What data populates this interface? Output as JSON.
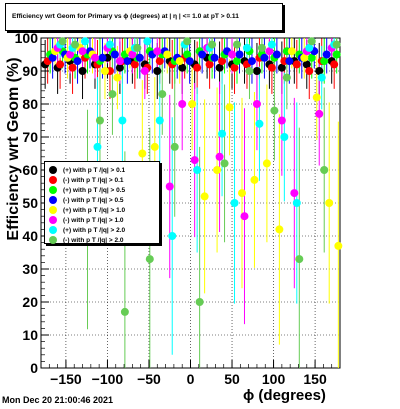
{
  "title": "Efficiency wrt Geom for Primary vs ϕ (degrees) at | η | <= 1.0 at pT > 0.11",
  "timestamp": "Mon Dec 20 21:00:46 2021",
  "chart_data": {
    "type": "scatter",
    "xlabel": "ϕ (degrees)",
    "ylabel": "Efficiency wrt Geom (%)",
    "xlim": [
      -180,
      180
    ],
    "ylim": [
      0,
      100
    ],
    "xticks": [
      -150,
      -100,
      -50,
      0,
      50,
      100,
      150
    ],
    "yticks": [
      0,
      10,
      20,
      30,
      40,
      50,
      60,
      70,
      80,
      90,
      100
    ],
    "xtick_labels": [
      "−150",
      "−100",
      "−50",
      "0",
      "50",
      "100",
      "150"
    ],
    "ytick_labels": [
      "0",
      "10",
      "20",
      "30",
      "40",
      "50",
      "60",
      "70",
      "80",
      "90",
      "100"
    ],
    "grid": true,
    "legend_position": "left-middle",
    "series": [
      {
        "name": "(+) with p T /|q| > 0.1",
        "color": "#000000",
        "x": [
          -175,
          -160,
          -145,
          -130,
          -115,
          -100,
          -85,
          -70,
          -55,
          -40,
          -25,
          -10,
          5,
          20,
          35,
          50,
          65,
          80,
          95,
          110,
          125,
          140,
          155,
          170
        ],
        "y": [
          92,
          91,
          93,
          90,
          92,
          94,
          91,
          93,
          92,
          90,
          93,
          91,
          92,
          94,
          91,
          92,
          93,
          90,
          92,
          91,
          93,
          92,
          90,
          93
        ]
      },
      {
        "name": "(-) with p T /|q| > 0.1",
        "color": "#ff0000",
        "x": [
          -172,
          -157,
          -142,
          -127,
          -112,
          -97,
          -82,
          -67,
          -52,
          -37,
          -22,
          -7,
          8,
          23,
          38,
          53,
          68,
          83,
          98,
          113,
          128,
          143,
          158,
          173
        ],
        "y": [
          93,
          92,
          91,
          94,
          92,
          90,
          93,
          92,
          91,
          93,
          92,
          94,
          91,
          92,
          93,
          91,
          92,
          94,
          91,
          93,
          92,
          90,
          93,
          92
        ]
      },
      {
        "name": "(+) with p T /|q| > 0.5",
        "color": "#00ff00",
        "x": [
          -169,
          -154,
          -139,
          -124,
          -109,
          -94,
          -79,
          -64,
          -49,
          -34,
          -19,
          -4,
          11,
          26,
          41,
          56,
          71,
          86,
          101,
          116,
          131,
          146,
          161,
          176
        ],
        "y": [
          95,
          96,
          94,
          95,
          93,
          96,
          95,
          94,
          96,
          95,
          93,
          95,
          96,
          94,
          95,
          93,
          96,
          95,
          94,
          96,
          95,
          94,
          93,
          95
        ]
      },
      {
        "name": "(-) with p T /|q| > 0.5",
        "color": "#0000ff",
        "x": [
          -166,
          -151,
          -136,
          -121,
          -106,
          -91,
          -76,
          -61,
          -46,
          -31,
          -16,
          -1,
          14,
          29,
          44,
          59,
          74,
          89,
          104,
          119,
          134,
          149,
          164
        ],
        "y": [
          94,
          95,
          93,
          96,
          94,
          95,
          93,
          94,
          95,
          96,
          94,
          93,
          95,
          94,
          96,
          95,
          93,
          94,
          95,
          93,
          94,
          96,
          95
        ]
      },
      {
        "name": "(+) with p T /|q| > 1.0",
        "color": "#ffff00",
        "x": [
          -163,
          -148,
          -133,
          -118,
          -103,
          -88,
          -73,
          -58,
          -43,
          -28,
          -13,
          2,
          17,
          32,
          47,
          62,
          77,
          92,
          107,
          122,
          137,
          152,
          167,
          178
        ],
        "y": [
          96,
          94,
          97,
          95,
          90,
          88,
          96,
          65,
          67,
          95,
          93,
          80,
          52,
          60,
          79,
          53,
          57,
          62,
          42,
          96,
          94,
          82,
          50,
          37
        ]
      },
      {
        "name": "(-) with p T /|q| > 1.0",
        "color": "#ff00ff",
        "x": [
          -160,
          -145,
          -130,
          -115,
          -100,
          -85,
          -70,
          -55,
          -40,
          -25,
          -10,
          5,
          20,
          35,
          50,
          65,
          80,
          95,
          110,
          125,
          140,
          155,
          170
        ],
        "y": [
          97,
          95,
          96,
          94,
          97,
          93,
          95,
          90,
          96,
          55,
          80,
          63,
          97,
          64,
          95,
          46,
          80,
          96,
          75,
          53,
          96,
          77,
          97
        ]
      },
      {
        "name": "(+) with p T /|q| > 2.0",
        "color": "#00ffff",
        "x": [
          -157,
          -142,
          -127,
          -112,
          -97,
          -82,
          -67,
          -52,
          -37,
          -22,
          -7,
          8,
          23,
          38,
          53,
          68,
          83,
          98,
          113,
          128,
          143,
          158,
          173
        ],
        "y": [
          98,
          97,
          99,
          67,
          98,
          75,
          97,
          99,
          75,
          40,
          98,
          60,
          97,
          71,
          50,
          97,
          74,
          98,
          70,
          50,
          97,
          88,
          98
        ]
      },
      {
        "name": "(-) with p T /|q| > 2.0",
        "color": "#66cc55",
        "x": [
          -154,
          -139,
          -124,
          -109,
          -94,
          -79,
          -64,
          -49,
          -34,
          -19,
          -4,
          11,
          26,
          41,
          56,
          71,
          86,
          101,
          116,
          131,
          146,
          161,
          176
        ],
        "y": [
          99,
          98,
          45,
          75,
          83,
          17,
          97,
          33,
          83,
          67,
          99,
          20,
          98,
          62,
          98,
          90,
          97,
          78,
          88,
          33,
          99,
          60,
          98
        ]
      }
    ]
  }
}
